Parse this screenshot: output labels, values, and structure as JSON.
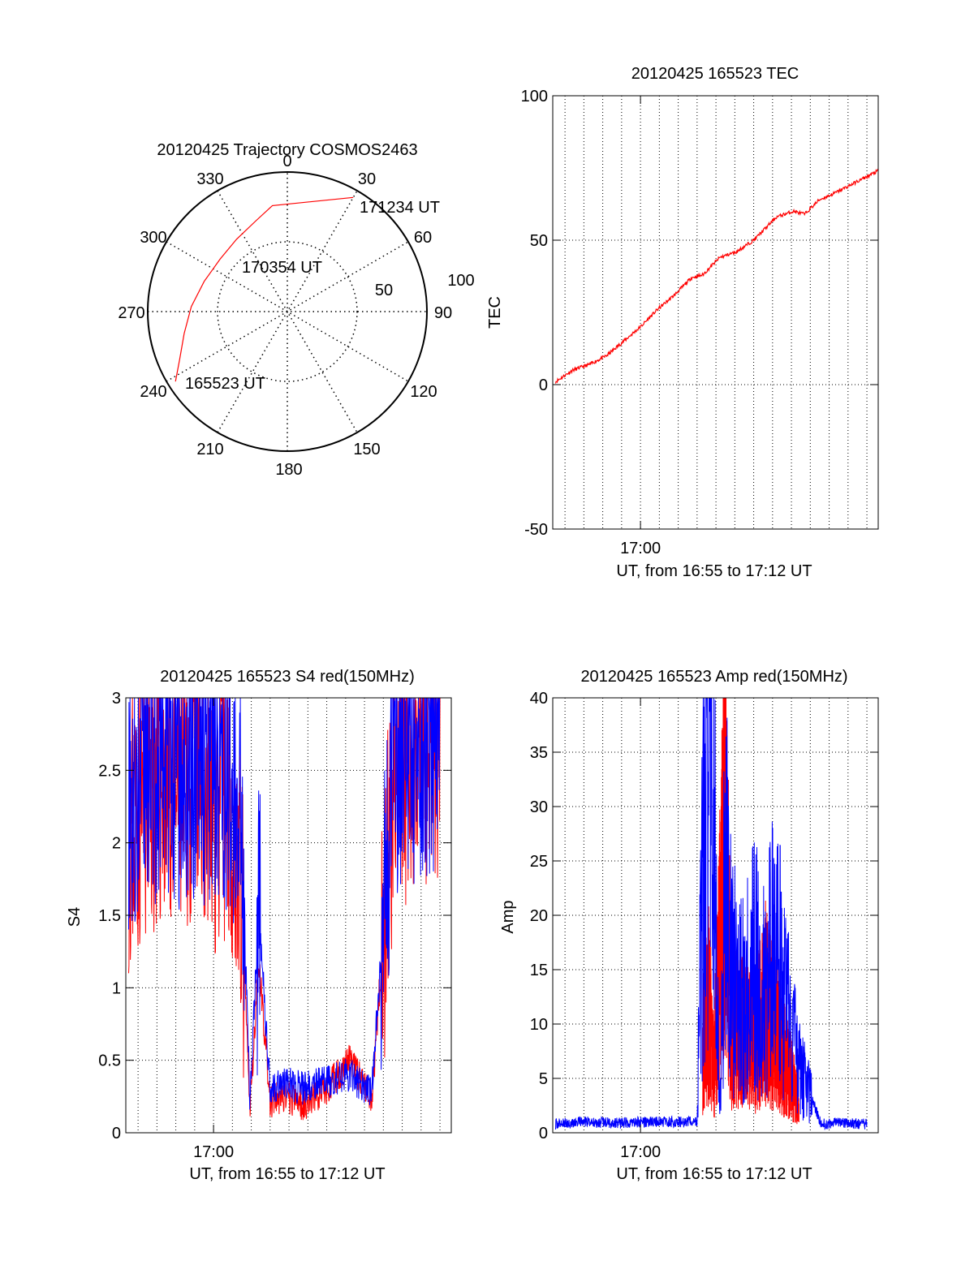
{
  "colors": {
    "red": "#ff0000",
    "blue": "#0000ff",
    "axis": "#000000",
    "grid": "#000000"
  },
  "chart_data": [
    {
      "type": "polar",
      "title": "20120425 Trajectory COSMOS2463",
      "azimuth_labels": [
        "0",
        "30",
        "60",
        "90",
        "120",
        "150",
        "180",
        "210",
        "240",
        "270",
        "300",
        "330"
      ],
      "radial_labels": [
        "50",
        "100"
      ],
      "trajectory": {
        "points": [
          {
            "azimuth": 238,
            "zenith": 85
          },
          {
            "azimuth": 246,
            "zenith": 76
          },
          {
            "azimuth": 258,
            "zenith": 68
          },
          {
            "azimuth": 273,
            "zenith": 62
          },
          {
            "azimuth": 290,
            "zenith": 57
          },
          {
            "azimuth": 308,
            "zenith": 55
          },
          {
            "azimuth": 325,
            "zenith": 57
          },
          {
            "azimuth": 341,
            "zenith": 62
          },
          {
            "azimuth": 352,
            "zenith": 69
          },
          {
            "azimuth": 30,
            "zenith": 85
          }
        ],
        "start_label": "165523 UT",
        "mid_label": "170354 UT",
        "end_label": "171234 UT"
      }
    },
    {
      "type": "line",
      "title": "20120425 165523 TEC",
      "xlabel": "UT, from 16:55 to 17:12 UT",
      "ylabel": "TEC",
      "xlim": [
        16.9225,
        17.21
      ],
      "ylim": [
        -50,
        100
      ],
      "xticks": [
        {
          "value": 17.0,
          "label": "17:00"
        }
      ],
      "yticks": [
        {
          "value": -50,
          "label": "-50"
        },
        {
          "value": 0,
          "label": "0"
        },
        {
          "value": 50,
          "label": "50"
        },
        {
          "value": 100,
          "label": "100"
        }
      ],
      "series": [
        {
          "color": "#ff0000",
          "x": [
            16.925,
            16.94,
            16.955,
            16.97,
            16.985,
            17.0,
            17.015,
            17.03,
            17.045,
            17.055,
            17.07,
            17.085,
            17.1,
            17.12,
            17.135,
            17.145,
            17.158,
            17.17,
            17.185,
            17.2,
            17.21
          ],
          "y": [
            1,
            5,
            7,
            10,
            15,
            20,
            26,
            31,
            37,
            38,
            44,
            46,
            50,
            58,
            60,
            59,
            64,
            66,
            69,
            72,
            74
          ]
        }
      ]
    },
    {
      "type": "line",
      "title": "20120425 165523 S4 red(150MHz)",
      "xlabel": "UT, from 16:55 to 17:12 UT",
      "ylabel": "S4",
      "xlim": [
        16.9225,
        17.21
      ],
      "ylim": [
        0,
        3
      ],
      "xticks": [
        {
          "value": 17.0,
          "label": "17:00"
        }
      ],
      "yticks": [
        {
          "value": 0,
          "label": "0"
        },
        {
          "value": 0.5,
          "label": "0.5"
        },
        {
          "value": 1,
          "label": "1"
        },
        {
          "value": 1.5,
          "label": "1.5"
        },
        {
          "value": 2,
          "label": "2"
        },
        {
          "value": 2.5,
          "label": "2.5"
        },
        {
          "value": 3,
          "label": "3"
        }
      ],
      "series": [
        {
          "color": "#ff0000",
          "x": [
            16.925,
            16.94,
            16.955,
            16.97,
            16.985,
            17.0,
            17.015,
            17.025,
            17.032,
            17.04,
            17.05,
            17.06,
            17.08,
            17.1,
            17.12,
            17.135,
            17.14,
            17.16,
            17.18,
            17.2
          ],
          "y": [
            2.1,
            2.3,
            2.4,
            2.3,
            2.5,
            2.2,
            2.3,
            1.6,
            0.15,
            1.2,
            0.2,
            0.25,
            0.2,
            0.3,
            0.5,
            0.3,
            0.25,
            2.5,
            2.6,
            2.7
          ]
        },
        {
          "color": "#0000ff",
          "x": [
            16.925,
            16.94,
            16.955,
            16.97,
            16.985,
            17.0,
            17.015,
            17.025,
            17.032,
            17.04,
            17.05,
            17.06,
            17.08,
            17.1,
            17.12,
            17.135,
            17.14,
            17.16,
            17.18,
            17.2
          ],
          "y": [
            2.4,
            2.5,
            2.6,
            2.5,
            2.6,
            2.5,
            2.5,
            2.2,
            0.25,
            1.5,
            0.3,
            0.35,
            0.3,
            0.35,
            0.4,
            0.3,
            0.3,
            2.6,
            2.7,
            2.8
          ]
        }
      ]
    },
    {
      "type": "line",
      "title": "20120425 165523 Amp red(150MHz)",
      "xlabel": "UT, from 16:55 to 17:12 UT",
      "ylabel": "Amp",
      "xlim": [
        16.9225,
        17.21
      ],
      "ylim": [
        0,
        40
      ],
      "xticks": [
        {
          "value": 17.0,
          "label": "17:00"
        }
      ],
      "yticks": [
        {
          "value": 0,
          "label": "0"
        },
        {
          "value": 5,
          "label": "5"
        },
        {
          "value": 10,
          "label": "10"
        },
        {
          "value": 15,
          "label": "15"
        },
        {
          "value": 20,
          "label": "20"
        },
        {
          "value": 25,
          "label": "25"
        },
        {
          "value": 30,
          "label": "30"
        },
        {
          "value": 35,
          "label": "35"
        },
        {
          "value": 40,
          "label": "40"
        }
      ],
      "series": [
        {
          "color": "#0000ff",
          "x": [
            16.925,
            16.95,
            16.98,
            17.0,
            17.03,
            17.05,
            17.055,
            17.06,
            17.065,
            17.07,
            17.075,
            17.08,
            17.09,
            17.1,
            17.11,
            17.12,
            17.13,
            17.14,
            17.16,
            17.18,
            17.2
          ],
          "y": [
            0.8,
            1.0,
            0.9,
            1.0,
            1.0,
            1.0,
            25,
            38,
            27,
            1,
            25,
            15,
            12,
            15,
            14,
            17,
            11,
            6,
            0.8,
            0.9,
            0.8
          ]
        },
        {
          "color": "#ff0000",
          "x": [
            17.055,
            17.06,
            17.065,
            17.075,
            17.08,
            17.09,
            17.1,
            17.11,
            17.12,
            17.13,
            17.14
          ],
          "y": [
            8,
            12,
            6,
            28,
            10,
            9,
            8,
            12,
            9,
            6,
            3
          ]
        }
      ]
    }
  ]
}
